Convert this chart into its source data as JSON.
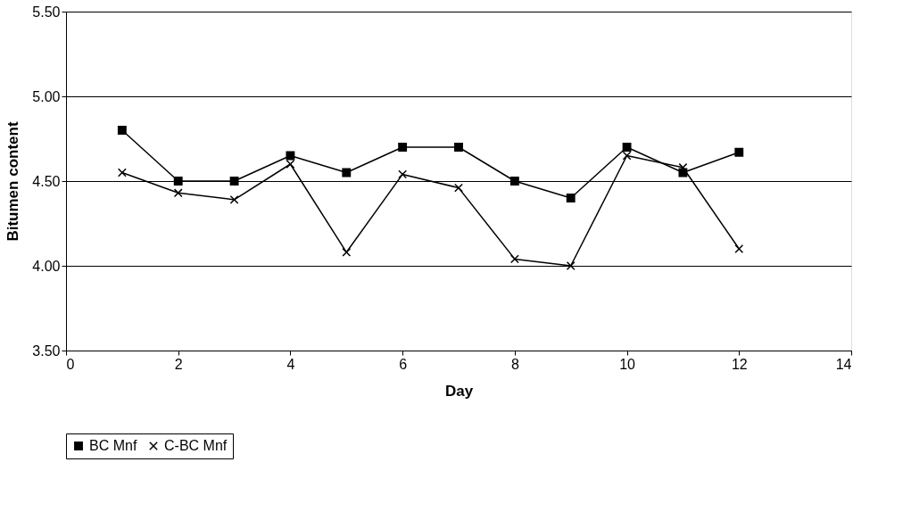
{
  "chart_data": {
    "type": "line",
    "xlabel": "Day",
    "ylabel": "Bitumen content",
    "x": [
      1,
      2,
      3,
      4,
      5,
      6,
      7,
      8,
      9,
      10,
      11,
      12
    ],
    "series": [
      {
        "name": "BC Mnf",
        "color": "#000000",
        "marker": "square",
        "values": [
          4.8,
          4.5,
          4.5,
          4.65,
          4.55,
          4.7,
          4.7,
          4.5,
          4.4,
          4.7,
          4.55,
          4.67
        ]
      },
      {
        "name": "C-BC Mnf",
        "color": "#000000",
        "marker": "cross",
        "values": [
          4.55,
          4.43,
          4.39,
          4.6,
          4.08,
          4.54,
          4.46,
          4.04,
          4.0,
          4.65,
          4.58,
          4.1
        ]
      }
    ],
    "xlim": [
      0,
      14
    ],
    "xticks": [
      0,
      2,
      4,
      6,
      8,
      10,
      12,
      14
    ],
    "ylim": [
      3.5,
      5.5
    ],
    "yticks": [
      {
        "value": 3.5,
        "label": "3.50"
      },
      {
        "value": 4.0,
        "label": "4.00"
      },
      {
        "value": 4.5,
        "label": "4.50"
      },
      {
        "value": 5.0,
        "label": "5.00"
      },
      {
        "value": 5.5,
        "label": "5.50"
      }
    ],
    "grid": "y",
    "legend": "bottom",
    "line_style": "solid"
  }
}
